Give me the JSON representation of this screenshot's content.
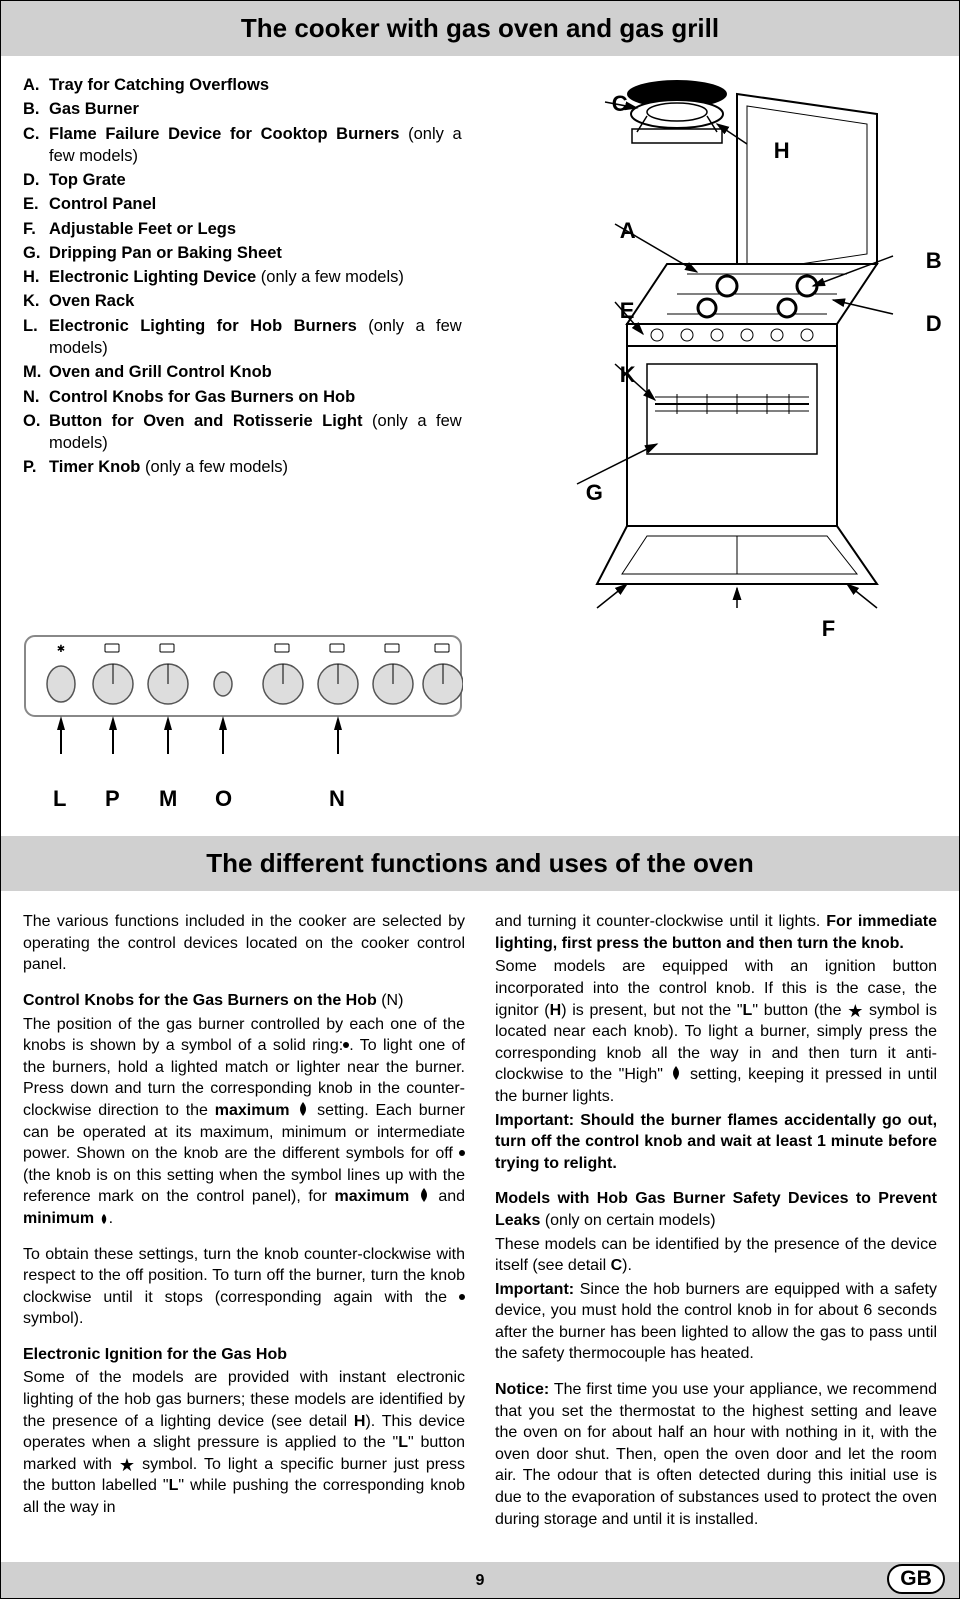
{
  "title1": "The cooker with gas oven and gas grill",
  "parts": [
    {
      "l": "A.",
      "t": "Tray for Catching Overflows",
      "n": ""
    },
    {
      "l": "B.",
      "t": "Gas Burner",
      "n": ""
    },
    {
      "l": "C.",
      "t": "Flame Failure Device for Cooktop Burners",
      "n": " (only a few models)"
    },
    {
      "l": "D.",
      "t": "Top Grate",
      "n": ""
    },
    {
      "l": "E.",
      "t": "Control Panel",
      "n": ""
    },
    {
      "l": "F.",
      "t": "Adjustable Feet or Legs",
      "n": ""
    },
    {
      "l": "G.",
      "t": "Dripping Pan or Baking Sheet",
      "n": ""
    },
    {
      "l": "H.",
      "t": "Electronic Lighting Device",
      "n": " (only a few models)"
    },
    {
      "l": "K.",
      "t": "Oven Rack",
      "n": ""
    },
    {
      "l": "L.",
      "t": "Electronic Lighting for Hob Burners",
      "n": " (only a few models)"
    },
    {
      "l": "M.",
      "t": "Oven and Grill Control Knob",
      "n": ""
    },
    {
      "l": "N.",
      "t": "Control Knobs for Gas Burners on Hob",
      "n": ""
    },
    {
      "l": "O.",
      "t": "Button for Oven and Rotisserie Light",
      "n": " (only a few models)"
    },
    {
      "l": "P.",
      "t": "Timer Knob",
      "n": " (only a few models)"
    }
  ],
  "title2": "The different functions and uses of the oven",
  "col1": {
    "p1": "The various functions included in the cooker are selected by operating the control devices located on the cooker control panel.",
    "h1_bold": "Control Knobs for the Gas Burners on the Hob",
    "h1_rest": " (N)",
    "p2a": "The position of the gas burner controlled by each one of the knobs is shown by a symbol of a solid ring:",
    "p2b": ". To light one of the burners, hold a lighted match or lighter near the burner. Press down and turn the corresponding knob in the counter-clockwise direction to the ",
    "max": "maximum",
    "p2c": " setting. Each burner can be operated at its maximum, minimum or intermediate power. Shown on the knob are the different symbols for off ",
    "p2d": " (the knob is on this setting when the symbol lines up with the reference mark on the control panel), for ",
    "p2e": " and ",
    "min": "minimum",
    "p2f": ".",
    "p3": "To obtain these settings, turn the knob counter-clockwise with respect to the off position. To turn off the burner, turn the knob clockwise until it stops (corresponding again with the ",
    "p3b": " symbol).",
    "h2": "Electronic Ignition for the Gas Hob",
    "p4a": "Some of the models are provided with instant electronic lighting of the hob gas burners; these models are identified by the presence of a lighting device (see detail ",
    "p4h": "H",
    "p4b": "). This device operates when a slight pressure is applied to the \"",
    "p4l": "L",
    "p4c": "\" button marked with ",
    "p4d": " symbol. To light a specific burner just press the button labelled \"",
    "p4e": "\" while pushing the corresponding knob all the way in"
  },
  "col2": {
    "p1a": "and turning it counter-clockwise until it lights. ",
    "p1bold": "For immediate lighting, first press the button and then turn the knob.",
    "p2a": "Some models are equipped with an ignition button incorporated into the control knob. If this is the case, the ignitor (",
    "p2h": "H",
    "p2b": ") is present, but not the \"",
    "p2l": "L",
    "p2c": "\" button (the ",
    "p2d": " symbol is located near each knob). To light a burner, simply press the corresponding knob all the way in and then turn it anti-clockwise to the \"High\" ",
    "p2e": " setting, keeping it pressed in until the burner lights.",
    "imp1": "Important: ",
    "imp1t": "Should the burner flames accidentally go out, turn off the control knob and wait at least 1 minute before trying to relight.",
    "h3a": "Models with Hob Gas Burner Safety Devices to Prevent Leaks",
    "h3b": " (only on certain models)",
    "p3a": "These models can be identified by the presence of the device itself (see detail ",
    "p3c": "C",
    "p3b": ").",
    "imp2": "Important:",
    "p4": " Since the hob burners are equipped with a safety device, you must hold the control knob in for about 6 seconds after the burner has been lighted to allow the gas to pass until the safety thermocouple has heated.",
    "not": "Notice:",
    "p5": " The first time you use your appliance, we recommend that you set the thermostat to the highest setting and leave the oven on for about half an hour with nothing in it, with the oven door shut. Then, open the oven door and let the room air. The odour that is often detected during this initial use is due to the evaporation of substances used to protect the oven during storage and until it is installed."
  },
  "pageNum": "9",
  "gb": "GB",
  "callouts": {
    "C": "C",
    "H": "H",
    "A": "A",
    "B": "B",
    "E": "E",
    "D": "D",
    "K": "K",
    "G": "G",
    "F": "F",
    "L": "L",
    "P": "P",
    "M": "M",
    "O": "O",
    "N": "N"
  }
}
